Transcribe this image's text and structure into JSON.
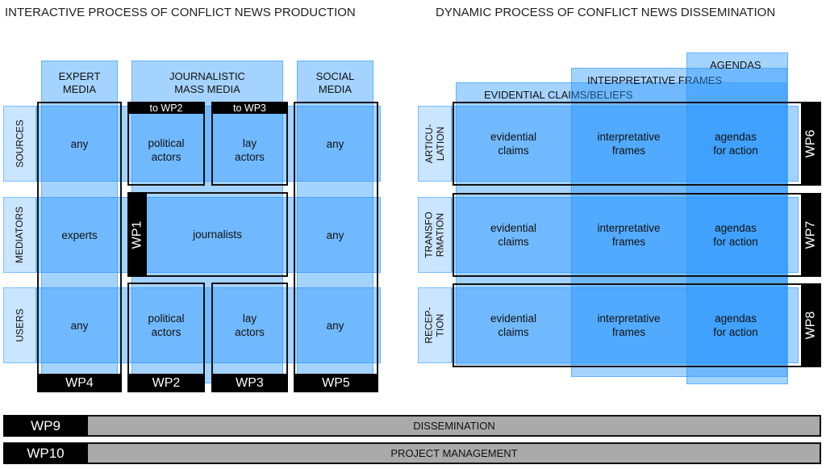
{
  "titles": {
    "left": "INTERACTIVE PROCESS OF CONFLICT NEWS PRODUCTION",
    "right": "DYNAMIC PROCESS OF CONFLICT NEWS DISSEMINATION"
  },
  "left": {
    "columns": [
      "EXPERT\nMEDIA",
      "JOURNALISTIC\nMASS MEDIA",
      "SOCIAL\nMEDIA"
    ],
    "rows": [
      "SOURCES",
      "MEDIATORS",
      "USERS"
    ],
    "cells": {
      "expert": [
        "any",
        "experts",
        "any"
      ],
      "social": [
        "any",
        "any",
        "any"
      ],
      "political_sources": "political\nactors",
      "lay_sources": "lay\nactors",
      "journalists": "journalists",
      "political_users": "political\nactors",
      "lay_users": "lay\nactors"
    },
    "tags": {
      "to_wp2": "to WP2",
      "to_wp3": "to WP3",
      "wp1": "WP1",
      "wp4": "WP4",
      "wp2": "WP2",
      "wp3": "WP3",
      "wp5": "WP5"
    }
  },
  "right": {
    "columns": [
      "EVIDENTIAL CLAIMS/BELIEFS",
      "INTERPRETATIVE FRAMES",
      "AGENDAS"
    ],
    "rows": [
      "ARTICU-\nLATION",
      "TRANSFO\nRMATION",
      "RECEP-\nTION"
    ],
    "cells": [
      "evidential\nclaims",
      "interpretative\nframes",
      "agendas\nfor action"
    ],
    "wps": [
      "WP6",
      "WP7",
      "WP8"
    ]
  },
  "bars": [
    {
      "wp": "WP9",
      "label": "DISSEMINATION"
    },
    {
      "wp": "WP10",
      "label": "PROJECT MANAGEMENT"
    }
  ],
  "colors": {
    "strip": "#3d9bff",
    "frame": "#111111",
    "bar": "#aaaaaa"
  }
}
